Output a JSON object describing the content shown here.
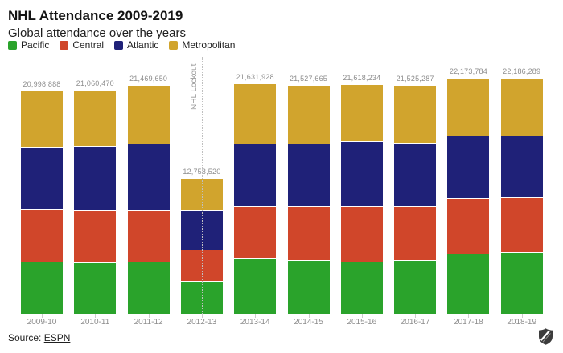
{
  "header": {
    "title": "NHL Attendance 2009-2019",
    "subtitle": "Global attendance over the years"
  },
  "legend": [
    {
      "label": "Pacific",
      "color": "#2aa32b"
    },
    {
      "label": "Central",
      "color": "#d0462a"
    },
    {
      "label": "Atlantic",
      "color": "#1f2178"
    },
    {
      "label": "Metropolitan",
      "color": "#d1a42d"
    }
  ],
  "chart_data": {
    "type": "bar",
    "stacked": true,
    "title": "NHL Attendance 2009-2019",
    "subtitle": "Global attendance over the years",
    "xlabel": "",
    "ylabel": "",
    "ylim": [
      0,
      22200000
    ],
    "grid": false,
    "legend_position": "top",
    "categories": [
      "2009-10",
      "2010-11",
      "2011-12",
      "2012-13",
      "2013-14",
      "2014-15",
      "2015-16",
      "2016-17",
      "2017-18",
      "2018-19"
    ],
    "series": [
      {
        "name": "Pacific",
        "color": "#2aa32b",
        "values": [
          4870000,
          4780000,
          4820000,
          3020000,
          5160000,
          5010000,
          4880000,
          4960000,
          5620000,
          5740000
        ]
      },
      {
        "name": "Central",
        "color": "#d0462a",
        "values": [
          4880000,
          4910000,
          4890000,
          2940000,
          4930000,
          5030000,
          5160000,
          5080000,
          5240000,
          5180000
        ]
      },
      {
        "name": "Atlantic",
        "color": "#1f2178",
        "values": [
          5930000,
          6050000,
          6230000,
          3700000,
          5920000,
          5970000,
          6170000,
          6000000,
          5870000,
          5790000
        ]
      },
      {
        "name": "Metropolitan",
        "color": "#d1a42d",
        "values": [
          5318888,
          5320470,
          5529650,
          3098520,
          5621928,
          5517665,
          5408234,
          5485287,
          5443784,
          5476289
        ]
      }
    ],
    "totals": [
      20998888,
      21060470,
      21469650,
      12758520,
      21631928,
      21527665,
      21618234,
      21525287,
      22173784,
      22186289
    ],
    "total_labels": [
      "20,998,888",
      "21,060,470",
      "21,469,650",
      "12,758,520",
      "21,631,928",
      "21,527,665",
      "21,618,234",
      "21,525,287",
      "22,173,784",
      "22,186,289"
    ],
    "annotation": {
      "label": "NHL Lockout",
      "category": "2012-13"
    }
  },
  "source": {
    "prefix": "Source: ",
    "link_label": "ESPN"
  },
  "footer": {
    "logo_icon": "nhl-shield-logo"
  }
}
